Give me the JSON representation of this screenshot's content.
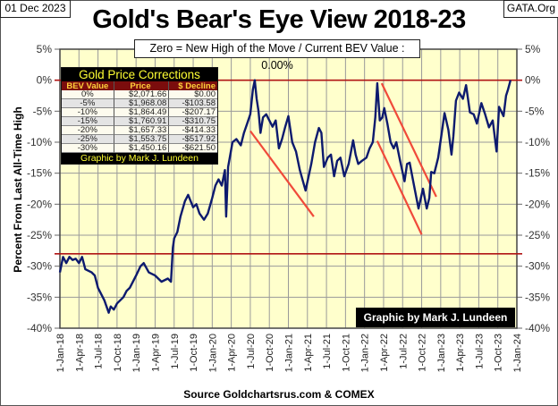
{
  "header": {
    "date": "01 Dec 2023",
    "source_org": "GATA.Org",
    "title": "Gold's Bear's Eye View 2018-23",
    "subtitle": "Zero = New High of the Move / Current  BEV Value : 0.00%"
  },
  "table": {
    "title": "Gold Price Corrections",
    "columns": [
      "BEV Value",
      "Price",
      "$ Decline"
    ],
    "rows": [
      [
        "0%",
        "$2,071.66",
        "$0.00"
      ],
      [
        "-5%",
        "$1,968.08",
        "-$103.58"
      ],
      [
        "-10%",
        "$1,864.49",
        "-$207.17"
      ],
      [
        "-15%",
        "$1,760.91",
        "-$310.75"
      ],
      [
        "-20%",
        "$1,657.33",
        "-$414.33"
      ],
      [
        "-25%",
        "$1,553.75",
        "-$517.92"
      ],
      [
        "-30%",
        "$1,450.16",
        "-$621.50"
      ]
    ],
    "footer": "Graphic by Mark J. Lundeen"
  },
  "credit": "Graphic by Mark J. Lundeen",
  "source": "Source Goldchartsrus.com & COMEX",
  "colors": {
    "series": "#0d1a6e",
    "reference": "#b01515",
    "trend": "#f04a3a",
    "plot_bg": "#ffffcc"
  },
  "chart_data": {
    "type": "line",
    "title": "Gold's Bear's Eye View 2018-23",
    "ylabel": "Percent  From Last  All-Time  High",
    "xlabel": "",
    "x_unit": "months since 1-Jan-18",
    "xlim": [
      0,
      72
    ],
    "ylim": [
      -40,
      5
    ],
    "grid": true,
    "yticks": [
      "5%",
      "0%",
      "-5%",
      "-10%",
      "-15%",
      "-20%",
      "-25%",
      "-30%",
      "-35%",
      "-40%"
    ],
    "ytick_values": [
      5,
      0,
      -5,
      -10,
      -15,
      -20,
      -25,
      -30,
      -35,
      -40
    ],
    "xticks": [
      "1-Jan-18",
      "1-Apr-18",
      "1-Jul-18",
      "1-Oct-18",
      "1-Jan-19",
      "1-Apr-19",
      "1-Jul-19",
      "1-Oct-19",
      "1-Jan-20",
      "1-Apr-20",
      "1-Jul-20",
      "1-Oct-20",
      "1-Jan-21",
      "1-Apr-21",
      "1-Jul-21",
      "1-Oct-21",
      "1-Jan-22",
      "1-Apr-22",
      "1-Jul-22",
      "1-Oct-22",
      "1-Jan-23",
      "1-Apr-23",
      "1-Jul-23",
      "1-Oct-23",
      "1-Jan-24"
    ],
    "series": [
      {
        "name": "Gold BEV",
        "points": [
          [
            0,
            -31
          ],
          [
            0.5,
            -28.5
          ],
          [
            1,
            -29.5
          ],
          [
            1.5,
            -28.5
          ],
          [
            2,
            -29
          ],
          [
            2.5,
            -28.8
          ],
          [
            3,
            -29.5
          ],
          [
            3.5,
            -28.5
          ],
          [
            4,
            -30.5
          ],
          [
            5,
            -31
          ],
          [
            5.5,
            -31.5
          ],
          [
            6,
            -33.5
          ],
          [
            7,
            -35.5
          ],
          [
            7.7,
            -37.5
          ],
          [
            8,
            -36.5
          ],
          [
            8.5,
            -37
          ],
          [
            9,
            -36
          ],
          [
            10,
            -35
          ],
          [
            10.5,
            -34
          ],
          [
            11,
            -33.5
          ],
          [
            12,
            -31.5
          ],
          [
            12.7,
            -30
          ],
          [
            13.2,
            -29.5
          ],
          [
            14,
            -31
          ],
          [
            15,
            -31.5
          ],
          [
            16,
            -32.5
          ],
          [
            17,
            -32
          ],
          [
            17.5,
            -32.5
          ],
          [
            17.8,
            -27
          ],
          [
            18,
            -25.5
          ],
          [
            18.5,
            -24.5
          ],
          [
            19,
            -22
          ],
          [
            19.7,
            -19.5
          ],
          [
            20.2,
            -18.5
          ],
          [
            21,
            -20.5
          ],
          [
            21.5,
            -20
          ],
          [
            22,
            -21.5
          ],
          [
            22.7,
            -22.5
          ],
          [
            23.3,
            -21.5
          ],
          [
            24,
            -19
          ],
          [
            24.5,
            -17
          ],
          [
            25,
            -16
          ],
          [
            25.5,
            -17
          ],
          [
            26,
            -14.5
          ],
          [
            26.2,
            -22
          ],
          [
            26.5,
            -14
          ],
          [
            27.2,
            -10
          ],
          [
            27.8,
            -9.5
          ],
          [
            28.5,
            -10.5
          ],
          [
            29,
            -8.5
          ],
          [
            29.5,
            -7
          ],
          [
            30,
            -5.5
          ],
          [
            30.4,
            -1.5
          ],
          [
            30.7,
            0
          ],
          [
            31,
            -3
          ],
          [
            31.3,
            -5
          ],
          [
            31.6,
            -8.5
          ],
          [
            32,
            -6
          ],
          [
            32.5,
            -5.5
          ],
          [
            33,
            -6.5
          ],
          [
            33.5,
            -7.5
          ],
          [
            34,
            -6.5
          ],
          [
            34.5,
            -11
          ],
          [
            35,
            -9.5
          ],
          [
            35.5,
            -7.5
          ],
          [
            36,
            -5.8
          ],
          [
            36.6,
            -10
          ],
          [
            37.2,
            -11.5
          ],
          [
            37.8,
            -14.5
          ],
          [
            38.7,
            -17.8
          ],
          [
            39.6,
            -13.5
          ],
          [
            40.2,
            -10
          ],
          [
            40.8,
            -7.7
          ],
          [
            41.2,
            -8.5
          ],
          [
            41.6,
            -14
          ],
          [
            42.2,
            -12.5
          ],
          [
            42.7,
            -12
          ],
          [
            43.2,
            -15.5
          ],
          [
            43.7,
            -13
          ],
          [
            44.2,
            -12.5
          ],
          [
            44.8,
            -15.5
          ],
          [
            45.5,
            -13.5
          ],
          [
            46.2,
            -9.7
          ],
          [
            46.6,
            -12
          ],
          [
            47,
            -13.5
          ],
          [
            47.6,
            -13
          ],
          [
            48.3,
            -12.5
          ],
          [
            48.8,
            -11
          ],
          [
            49.3,
            -10
          ],
          [
            49.7,
            -6
          ],
          [
            50,
            -0.5
          ],
          [
            50.4,
            -6.5
          ],
          [
            50.8,
            -6
          ],
          [
            51.1,
            -4.5
          ],
          [
            51.6,
            -7
          ],
          [
            52.1,
            -10
          ],
          [
            52.6,
            -11
          ],
          [
            53,
            -10
          ],
          [
            53.6,
            -13
          ],
          [
            54.3,
            -16.3
          ],
          [
            54.7,
            -13.5
          ],
          [
            55.1,
            -13.3
          ],
          [
            55.8,
            -17
          ],
          [
            56.5,
            -20.7
          ],
          [
            57.2,
            -17.5
          ],
          [
            57.8,
            -20.7
          ],
          [
            58.2,
            -19
          ],
          [
            58.5,
            -14.8
          ],
          [
            59,
            -15
          ],
          [
            59.6,
            -12.5
          ],
          [
            60.1,
            -9
          ],
          [
            60.6,
            -5.3
          ],
          [
            61.2,
            -8
          ],
          [
            61.7,
            -12
          ],
          [
            62,
            -9
          ],
          [
            62.4,
            -3.3
          ],
          [
            62.9,
            -2
          ],
          [
            63.5,
            -3
          ],
          [
            64,
            -0.8
          ],
          [
            64.6,
            -5.2
          ],
          [
            65.2,
            -5.5
          ],
          [
            65.7,
            -7
          ],
          [
            66.4,
            -3.7
          ],
          [
            67,
            -5.5
          ],
          [
            67.6,
            -7.6
          ],
          [
            68.2,
            -6.5
          ],
          [
            68.8,
            -11.5
          ],
          [
            69.2,
            -4.3
          ],
          [
            69.9,
            -5.8
          ],
          [
            70.3,
            -2.5
          ],
          [
            70.6,
            -1.5
          ],
          [
            71,
            0
          ]
        ]
      }
    ],
    "reference_lines": [
      0,
      -28
    ],
    "trend_lines": [
      [
        [
          30,
          -8.2
        ],
        [
          40,
          -22
        ]
      ],
      [
        [
          50,
          -9.8
        ],
        [
          57,
          -24.9
        ]
      ],
      [
        [
          50.7,
          -0.5
        ],
        [
          59.3,
          -18.8
        ]
      ]
    ]
  }
}
